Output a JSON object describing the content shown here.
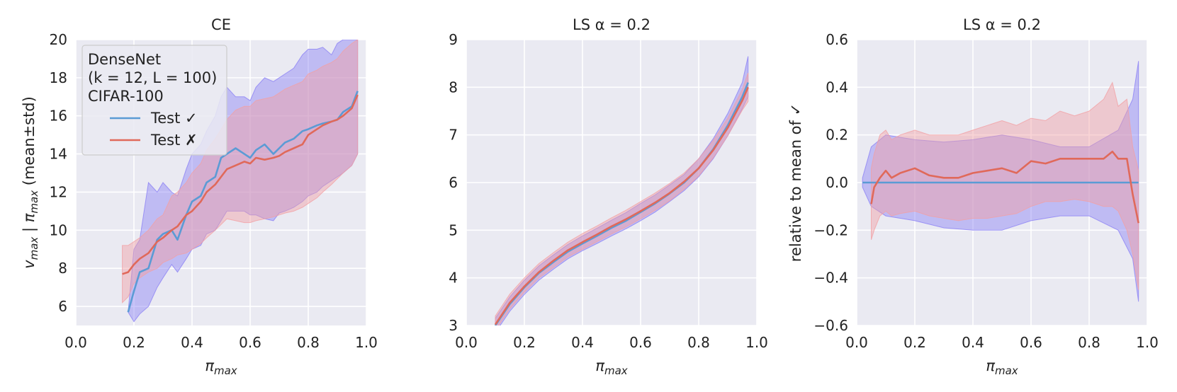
{
  "colors": {
    "panel_bg": "#eaeaf2",
    "grid": "#ffffff",
    "test_correct": "#5b9bd5",
    "test_wrong": "#e0695a",
    "band_correct": "#8c82f5",
    "band_wrong": "#f2a0a4"
  },
  "chart_data": [
    {
      "type": "line",
      "title": "CE",
      "xlabel": "π_max",
      "ylabel": "v_max | π_max    (mean±std)",
      "xlim": [
        0.0,
        1.0
      ],
      "ylim": [
        5,
        20
      ],
      "xticks": [
        "0.0",
        "0.2",
        "0.4",
        "0.6",
        "0.8",
        "1.0"
      ],
      "yticks": [
        "6",
        "8",
        "10",
        "12",
        "14",
        "16",
        "18",
        "20"
      ],
      "grid": true,
      "legend": {
        "placement": "upper-left",
        "title_lines": [
          "DenseNet",
          "(k = 12, L = 100)",
          "CIFAR-100"
        ],
        "entries": [
          "Test ✓",
          "Test ✗"
        ]
      },
      "series": [
        {
          "name": "Test ✓",
          "x": [
            0.18,
            0.2,
            0.22,
            0.25,
            0.28,
            0.3,
            0.33,
            0.35,
            0.38,
            0.4,
            0.43,
            0.45,
            0.48,
            0.5,
            0.52,
            0.55,
            0.58,
            0.6,
            0.62,
            0.65,
            0.68,
            0.7,
            0.72,
            0.75,
            0.78,
            0.8,
            0.83,
            0.85,
            0.88,
            0.9,
            0.92,
            0.95,
            0.97
          ],
          "y": [
            5.7,
            6.8,
            7.8,
            8.0,
            9.5,
            9.8,
            10.0,
            9.5,
            10.8,
            11.5,
            11.8,
            12.5,
            12.8,
            13.8,
            14.0,
            14.3,
            14.0,
            13.8,
            14.2,
            14.5,
            14.0,
            14.3,
            14.6,
            14.8,
            15.2,
            15.3,
            15.5,
            15.6,
            15.7,
            15.8,
            16.2,
            16.5,
            17.3
          ],
          "band_lower": [
            5.7,
            5.2,
            5.6,
            6.0,
            7.0,
            7.5,
            8.2,
            7.8,
            8.5,
            9.0,
            9.2,
            9.8,
            10.0,
            10.5,
            11.0,
            11.0,
            11.0,
            10.8,
            10.8,
            10.6,
            10.5,
            10.9,
            11.0,
            11.2,
            11.5,
            11.8,
            12.0,
            12.3,
            12.6,
            12.8,
            13.0,
            13.4,
            14.0
          ],
          "band_upper": [
            5.7,
            9.0,
            9.5,
            12.5,
            12.0,
            12.5,
            12.0,
            11.8,
            13.2,
            14.0,
            14.5,
            15.2,
            16.0,
            17.0,
            17.5,
            17.0,
            17.0,
            16.8,
            17.5,
            18.0,
            17.8,
            18.0,
            18.2,
            18.5,
            19.2,
            19.5,
            19.5,
            19.6,
            19.2,
            19.8,
            20.0,
            20.0,
            20.0
          ]
        },
        {
          "name": "Test ✗",
          "x": [
            0.16,
            0.18,
            0.2,
            0.22,
            0.25,
            0.28,
            0.3,
            0.33,
            0.35,
            0.38,
            0.4,
            0.43,
            0.45,
            0.48,
            0.5,
            0.52,
            0.55,
            0.58,
            0.6,
            0.62,
            0.65,
            0.68,
            0.7,
            0.72,
            0.75,
            0.78,
            0.8,
            0.83,
            0.85,
            0.88,
            0.9,
            0.92,
            0.95,
            0.97
          ],
          "y": [
            7.7,
            7.8,
            8.2,
            8.5,
            8.8,
            9.4,
            9.6,
            10.0,
            10.2,
            10.8,
            11.0,
            11.5,
            12.0,
            12.4,
            12.8,
            13.2,
            13.4,
            13.6,
            13.5,
            13.8,
            13.7,
            13.8,
            13.9,
            14.1,
            14.3,
            14.5,
            15.0,
            15.3,
            15.5,
            15.7,
            15.8,
            16.0,
            16.4,
            17.1
          ],
          "band_lower": [
            6.2,
            6.5,
            7.2,
            7.5,
            7.8,
            8.0,
            8.3,
            8.5,
            8.7,
            8.8,
            9.0,
            9.3,
            9.6,
            10.0,
            10.3,
            10.6,
            10.5,
            10.4,
            10.4,
            10.5,
            10.6,
            10.7,
            10.8,
            10.9,
            11.0,
            11.2,
            11.4,
            11.7,
            12.0,
            12.4,
            12.7,
            13.0,
            13.4,
            14.0
          ],
          "band_upper": [
            9.2,
            9.2,
            9.4,
            9.6,
            10.0,
            10.6,
            10.8,
            11.8,
            12.0,
            12.5,
            13.0,
            13.5,
            14.2,
            14.8,
            15.3,
            15.8,
            16.3,
            16.5,
            16.5,
            16.8,
            16.9,
            17.0,
            17.2,
            17.4,
            17.6,
            17.8,
            18.2,
            18.4,
            18.6,
            18.8,
            19.0,
            19.4,
            19.8,
            20.0
          ]
        }
      ]
    },
    {
      "type": "line",
      "title": "LS α = 0.2",
      "xlabel": "π_max",
      "ylabel": "",
      "xlim": [
        0.0,
        1.0
      ],
      "ylim": [
        3,
        9
      ],
      "xticks": [
        "0.0",
        "0.2",
        "0.4",
        "0.6",
        "0.8",
        "1.0"
      ],
      "yticks": [
        "3",
        "4",
        "5",
        "6",
        "7",
        "8",
        "9"
      ],
      "grid": true,
      "series": [
        {
          "name": "Test ✓",
          "x": [
            0.1,
            0.15,
            0.2,
            0.25,
            0.3,
            0.35,
            0.4,
            0.45,
            0.5,
            0.55,
            0.6,
            0.65,
            0.7,
            0.75,
            0.8,
            0.85,
            0.9,
            0.95,
            0.97
          ],
          "y": [
            3.0,
            3.45,
            3.8,
            4.1,
            4.33,
            4.55,
            4.72,
            4.88,
            5.05,
            5.2,
            5.38,
            5.56,
            5.77,
            6.0,
            6.3,
            6.7,
            7.2,
            7.8,
            8.1
          ],
          "band_lower": [
            2.85,
            3.3,
            3.65,
            3.95,
            4.18,
            4.4,
            4.57,
            4.72,
            4.88,
            5.03,
            5.2,
            5.38,
            5.6,
            5.83,
            6.12,
            6.5,
            6.98,
            7.55,
            7.8
          ],
          "band_upper": [
            3.15,
            3.6,
            3.95,
            4.25,
            4.48,
            4.7,
            4.88,
            5.04,
            5.21,
            5.37,
            5.56,
            5.74,
            5.95,
            6.17,
            6.5,
            6.92,
            7.45,
            8.1,
            8.65
          ]
        },
        {
          "name": "Test ✗",
          "x": [
            0.1,
            0.15,
            0.2,
            0.25,
            0.3,
            0.35,
            0.4,
            0.45,
            0.5,
            0.55,
            0.6,
            0.65,
            0.7,
            0.75,
            0.8,
            0.85,
            0.9,
            0.95,
            0.97
          ],
          "y": [
            3.02,
            3.48,
            3.82,
            4.12,
            4.36,
            4.58,
            4.75,
            4.91,
            5.08,
            5.23,
            5.4,
            5.58,
            5.78,
            6.02,
            6.3,
            6.68,
            7.15,
            7.72,
            8.0
          ],
          "band_lower": [
            2.9,
            3.35,
            3.7,
            4.0,
            4.22,
            4.44,
            4.6,
            4.76,
            4.92,
            5.07,
            5.24,
            5.42,
            5.62,
            5.86,
            6.14,
            6.52,
            6.98,
            7.52,
            7.7
          ],
          "band_upper": [
            3.2,
            3.66,
            4.0,
            4.3,
            4.53,
            4.75,
            4.93,
            5.09,
            5.26,
            5.42,
            5.6,
            5.78,
            5.98,
            6.2,
            6.5,
            6.88,
            7.35,
            7.95,
            8.3
          ]
        }
      ]
    },
    {
      "type": "line",
      "title": "LS α = 0.2",
      "xlabel": "π_max",
      "ylabel": "relative to mean of ✓",
      "xlim": [
        0.0,
        1.0
      ],
      "ylim": [
        -0.6,
        0.6
      ],
      "xticks": [
        "0.0",
        "0.2",
        "0.4",
        "0.6",
        "0.8",
        "1.0"
      ],
      "yticks": [
        "−0.6",
        "−0.4",
        "−0.2",
        "0.0",
        "0.2",
        "0.4",
        "0.6"
      ],
      "grid": true,
      "series": [
        {
          "name": "Test ✓",
          "x": [
            0.02,
            0.05,
            0.1,
            0.2,
            0.3,
            0.4,
            0.5,
            0.6,
            0.7,
            0.8,
            0.9,
            0.95,
            0.97
          ],
          "y": [
            0.0,
            0.0,
            0.0,
            0.0,
            0.0,
            0.0,
            0.0,
            0.0,
            0.0,
            0.0,
            0.0,
            0.0,
            0.0
          ],
          "band_lower": [
            -0.02,
            -0.1,
            -0.14,
            -0.16,
            -0.19,
            -0.2,
            -0.2,
            -0.16,
            -0.14,
            -0.14,
            -0.2,
            -0.32,
            -0.5
          ],
          "band_upper": [
            0.02,
            0.15,
            0.2,
            0.18,
            0.17,
            0.18,
            0.2,
            0.18,
            0.15,
            0.15,
            0.22,
            0.35,
            0.51
          ]
        },
        {
          "name": "Test ✗",
          "x": [
            0.05,
            0.06,
            0.08,
            0.1,
            0.12,
            0.15,
            0.2,
            0.25,
            0.3,
            0.35,
            0.4,
            0.45,
            0.5,
            0.55,
            0.6,
            0.65,
            0.7,
            0.75,
            0.8,
            0.85,
            0.88,
            0.9,
            0.93,
            0.95,
            0.97
          ],
          "y": [
            -0.09,
            -0.02,
            0.02,
            0.05,
            0.02,
            0.04,
            0.06,
            0.03,
            0.02,
            0.02,
            0.04,
            0.05,
            0.06,
            0.04,
            0.09,
            0.08,
            0.1,
            0.1,
            0.1,
            0.1,
            0.13,
            0.1,
            0.1,
            -0.05,
            -0.17
          ],
          "band_lower": [
            -0.24,
            -0.2,
            -0.14,
            -0.12,
            -0.14,
            -0.13,
            -0.12,
            -0.14,
            -0.15,
            -0.16,
            -0.15,
            -0.15,
            -0.14,
            -0.13,
            -0.1,
            -0.08,
            -0.08,
            -0.07,
            -0.08,
            -0.1,
            -0.1,
            -0.12,
            -0.2,
            -0.3,
            -0.45
          ],
          "band_upper": [
            0.06,
            0.12,
            0.2,
            0.22,
            0.18,
            0.2,
            0.22,
            0.2,
            0.2,
            0.2,
            0.22,
            0.24,
            0.26,
            0.24,
            0.27,
            0.26,
            0.3,
            0.28,
            0.3,
            0.35,
            0.42,
            0.32,
            0.35,
            0.15,
            0.05
          ]
        }
      ]
    }
  ]
}
